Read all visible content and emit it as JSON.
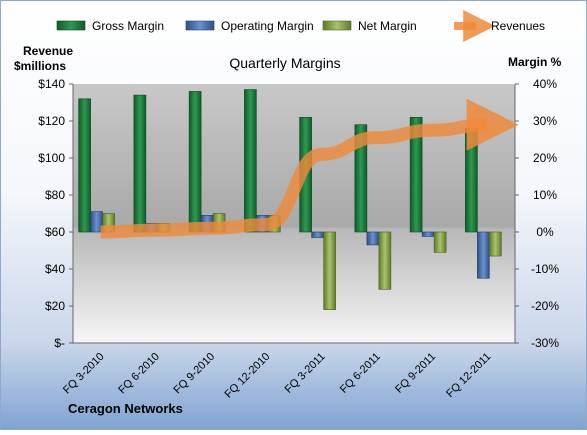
{
  "chart_data": {
    "type": "bar",
    "title": "Quarterly Margins",
    "categories": [
      "FQ 3-2010",
      "FQ 6-2010",
      "FQ 9-2010",
      "FQ 12-2010",
      "FQ 3-2011",
      "FQ 6-2011",
      "FQ 9-2011",
      "FQ 12-2011"
    ],
    "series": [
      {
        "name": "Gross Margin",
        "type": "bar",
        "axis": "right",
        "color": "#1f7a3d",
        "values": [
          36,
          37,
          38,
          38.5,
          31,
          29,
          31,
          28
        ]
      },
      {
        "name": "Operating Margin",
        "type": "bar",
        "axis": "right",
        "color": "#4a74b4",
        "values": [
          5.5,
          2.3,
          4.5,
          4.5,
          -1.5,
          -3.5,
          -1.2,
          -12.5
        ]
      },
      {
        "name": "Net Margin",
        "type": "bar",
        "axis": "right",
        "color": "#8eab4e",
        "values": [
          5,
          2.3,
          5,
          4.5,
          -21,
          -15.5,
          -5.5,
          -6.5
        ]
      },
      {
        "name": "Revenues",
        "type": "line",
        "axis": "left",
        "color": "#ee8a3c",
        "values": [
          60,
          61,
          62,
          64,
          102,
          111,
          115,
          118
        ]
      }
    ],
    "left_axis": {
      "label_line1": "Revenue",
      "label_line2": "$millions",
      "ylim": [
        0,
        140
      ],
      "ticks": [
        "$-",
        "$20",
        "$40",
        "$60",
        "$80",
        "$100",
        "$120",
        "$140"
      ]
    },
    "right_axis": {
      "label": "Margin %",
      "ylim": [
        -30,
        40
      ],
      "ticks": [
        "-30%",
        "-20%",
        "-10%",
        "0%",
        "10%",
        "20%",
        "30%",
        "40%"
      ]
    },
    "legend_position": "top",
    "grid": false
  },
  "footer": {
    "company": "Ceragon Networks"
  }
}
